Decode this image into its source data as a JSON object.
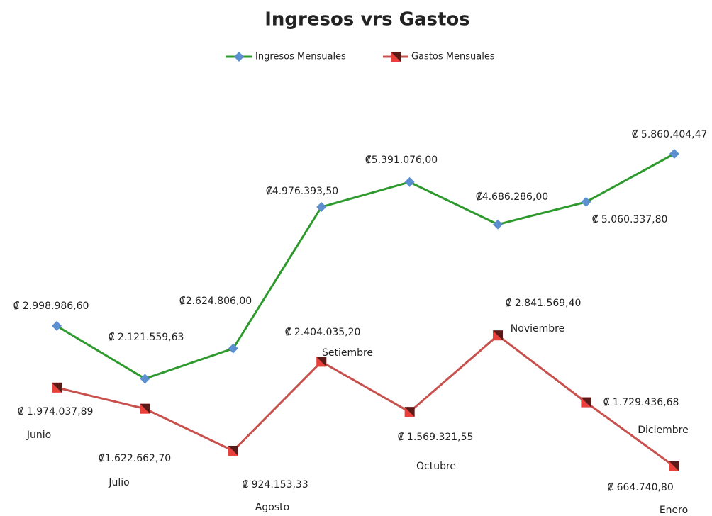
{
  "chart_data": {
    "type": "line",
    "title": "Ingresos vrs Gastos",
    "categories": [
      "Junio",
      "Julio",
      "Agosto",
      "Setiembre",
      "Octubre",
      "Noviembre",
      "Diciembre",
      "Enero"
    ],
    "legend": "top",
    "series": [
      {
        "name": "Ingresos Mensuales",
        "color": "#2e9a2e",
        "marker_color": "#5b8fd0",
        "marker": "diamond",
        "values": [
          2998986.6,
          2121559.63,
          2624806.0,
          4976393.5,
          5391076.0,
          4686286.0,
          5060337.8,
          5860404.47
        ],
        "value_labels": [
          "₡ 2.998.986,60",
          "₡ 2.121.559,63",
          "₡2.624.806,00",
          "₡4.976.393,50",
          "₡5.391.076,00",
          "₡4.686.286,00",
          "₡ 5.060.337,80",
          "₡ 5.860.404,47"
        ]
      },
      {
        "name": "Gastos Mensuales",
        "color": "#c8504d",
        "marker_color": "#e8413c",
        "marker": "square",
        "values": [
          1974037.89,
          1622662.7,
          924153.33,
          2404035.2,
          1569321.55,
          2841569.4,
          1729436.68,
          664740.8
        ],
        "value_labels": [
          "₡ 1.974.037,89",
          "₡1.622.662,70",
          "₡ 924.153,33",
          "₡ 2.404.035,20",
          "₡ 1.569.321,55",
          "₡ 2.841.569,40",
          "₡ 1.729.436,68",
          "₡ 664.740,80"
        ]
      }
    ]
  }
}
